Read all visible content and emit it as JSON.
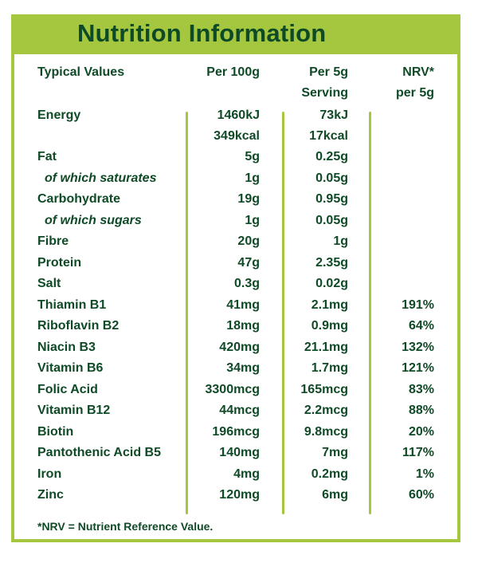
{
  "title": "Nutrition Information",
  "headers": {
    "col0": "Typical Values",
    "col1": "Per 100g",
    "col2_line1": "Per 5g",
    "col2_line2": "Serving",
    "col3_line1": "NRV*",
    "col3_line2": "per 5g"
  },
  "energy": {
    "label": "Energy",
    "per100_kj": "1460kJ",
    "per5_kj": "73kJ",
    "per100_kcal": "349kcal",
    "per5_kcal": "17kcal"
  },
  "rows": [
    {
      "label": "Fat",
      "per100": "5g",
      "per5": "0.25g",
      "nrv": ""
    },
    {
      "label": "of which saturates",
      "per100": "1g",
      "per5": "0.05g",
      "nrv": ""
    },
    {
      "label": "Carbohydrate",
      "per100": "19g",
      "per5": "0.95g",
      "nrv": ""
    },
    {
      "label": "of which sugars",
      "per100": "1g",
      "per5": "0.05g",
      "nrv": ""
    },
    {
      "label": "Fibre",
      "per100": "20g",
      "per5": "1g",
      "nrv": ""
    },
    {
      "label": "Protein",
      "per100": "47g",
      "per5": "2.35g",
      "nrv": ""
    },
    {
      "label": "Salt",
      "per100": "0.3g",
      "per5": "0.02g",
      "nrv": ""
    },
    {
      "label": "Thiamin B1",
      "per100": "41mg",
      "per5": "2.1mg",
      "nrv": "191%"
    },
    {
      "label": "Riboflavin B2",
      "per100": "18mg",
      "per5": "0.9mg",
      "nrv": "64%"
    },
    {
      "label": "Niacin B3",
      "per100": "420mg",
      "per5": "21.1mg",
      "nrv": "132%"
    },
    {
      "label": "Vitamin B6",
      "per100": "34mg",
      "per5": "1.7mg",
      "nrv": "121%"
    },
    {
      "label": "Folic Acid",
      "per100": "3300mcg",
      "per5": "165mcg",
      "nrv": "83%"
    },
    {
      "label": "Vitamin B12",
      "per100": "44mcg",
      "per5": "2.2mcg",
      "nrv": "88%"
    },
    {
      "label": "Biotin",
      "per100": "196mcg",
      "per5": "9.8mcg",
      "nrv": "20%"
    },
    {
      "label": "Pantothenic Acid B5",
      "per100": "140mg",
      "per5": "7mg",
      "nrv": "117%"
    },
    {
      "label": "Iron",
      "per100": "4mg",
      "per5": "0.2mg",
      "nrv": "1%"
    },
    {
      "label": "Zinc",
      "per100": "120mg",
      "per5": "6mg",
      "nrv": "60%"
    }
  ],
  "footnote": "*NRV = Nutrient Reference Value.",
  "colors": {
    "accent": "#a5c73f",
    "text": "#0f4a26"
  }
}
